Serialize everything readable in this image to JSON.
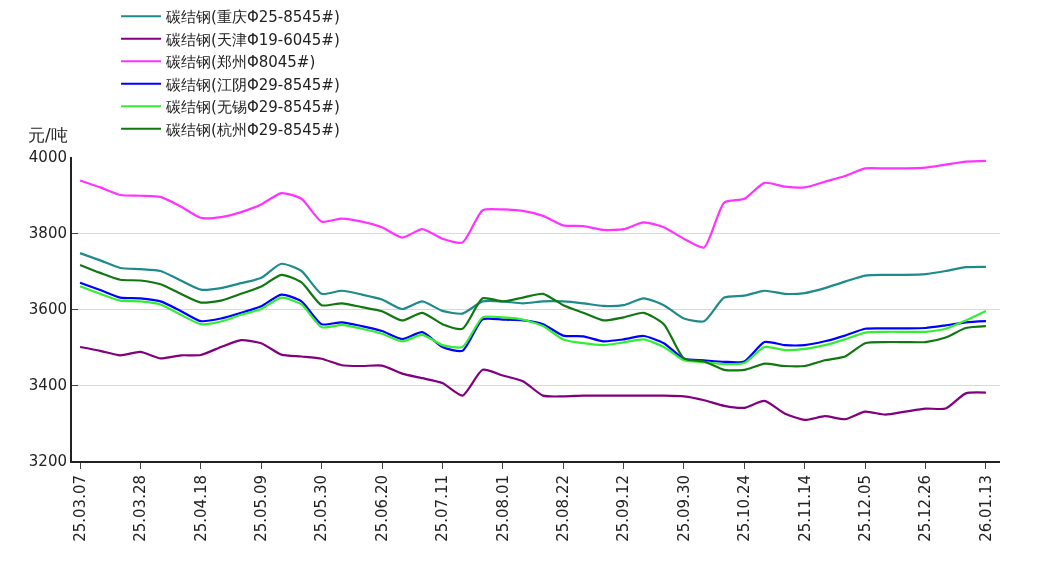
{
  "chart_data": {
    "type": "line",
    "ylabel": "元/吨",
    "categories": [
      "25.03.07",
      null,
      null,
      "25.03.28",
      null,
      null,
      "25.04.18",
      null,
      null,
      "25.05.09",
      null,
      null,
      "25.05.30",
      null,
      null,
      "25.06.20",
      null,
      null,
      "25.07.11",
      null,
      null,
      "25.08.01",
      null,
      null,
      "25.08.22",
      null,
      null,
      "25.09.12",
      null,
      null,
      "25.09.30",
      null,
      null,
      "25.10.24",
      null,
      null,
      "25.11.14",
      null,
      null,
      "25.12.05",
      null,
      null,
      "25.12.26",
      null,
      null,
      "26.01.13"
    ],
    "ylim": [
      3200,
      4000
    ],
    "yticks": [
      3200,
      3400,
      3600,
      3800,
      4000
    ],
    "grid": "y",
    "legend": "top",
    "line_style": "solid",
    "series": [
      {
        "name": "碳结钢(重庆Φ25-8545#)",
        "color": "#1e8a8a",
        "values": [
          3747,
          3728,
          3708,
          3705,
          3700,
          3675,
          3651,
          3655,
          3668,
          3682,
          3719,
          3700,
          3640,
          3648,
          3638,
          3625,
          3600,
          3620,
          3595,
          3588,
          3620,
          3620,
          3615,
          3620,
          3620,
          3615,
          3608,
          3610,
          3628,
          3610,
          3575,
          3568,
          3630,
          3635,
          3648,
          3640,
          3642,
          3655,
          3672,
          3688,
          3690,
          3690,
          3692,
          3700,
          3710,
          3711
        ]
      },
      {
        "name": "碳结钢(天津Φ19-6045#)",
        "color": "#800080",
        "values": [
          3500,
          3490,
          3478,
          3487,
          3470,
          3478,
          3479,
          3500,
          3518,
          3510,
          3480,
          3475,
          3469,
          3452,
          3450,
          3451,
          3430,
          3418,
          3405,
          3372,
          3440,
          3425,
          3410,
          3372,
          3370,
          3372,
          3372,
          3372,
          3372,
          3372,
          3370,
          3360,
          3345,
          3340,
          3358,
          3325,
          3308,
          3318,
          3310,
          3330,
          3322,
          3330,
          3338,
          3338,
          3378,
          3380
        ]
      },
      {
        "name": "碳结钢(郑州Φ8045#)",
        "color": "#ff33ff",
        "values": [
          3938,
          3920,
          3900,
          3898,
          3895,
          3870,
          3840,
          3842,
          3855,
          3875,
          3905,
          3890,
          3830,
          3838,
          3830,
          3815,
          3788,
          3810,
          3785,
          3775,
          3860,
          3862,
          3858,
          3845,
          3820,
          3818,
          3808,
          3810,
          3828,
          3815,
          3785,
          3762,
          3880,
          3890,
          3932,
          3922,
          3920,
          3935,
          3950,
          3970,
          3970,
          3970,
          3972,
          3980,
          3988,
          3990
        ]
      },
      {
        "name": "碳结钢(江阴Φ29-8545#)",
        "color": "#0000ff",
        "values": [
          3669,
          3650,
          3630,
          3628,
          3620,
          3595,
          3568,
          3575,
          3590,
          3607,
          3638,
          3620,
          3560,
          3565,
          3555,
          3542,
          3521,
          3539,
          3500,
          3490,
          3573,
          3572,
          3570,
          3560,
          3530,
          3528,
          3515,
          3520,
          3529,
          3510,
          3469,
          3465,
          3461,
          3462,
          3513,
          3505,
          3505,
          3515,
          3530,
          3548,
          3549,
          3549,
          3550,
          3557,
          3565,
          3568
        ]
      },
      {
        "name": "碳结钢(无锡Φ29-8545#)",
        "color": "#33ee33",
        "values": [
          3660,
          3640,
          3622,
          3620,
          3612,
          3585,
          3560,
          3567,
          3585,
          3600,
          3630,
          3612,
          3552,
          3558,
          3548,
          3535,
          3515,
          3532,
          3505,
          3500,
          3578,
          3578,
          3572,
          3555,
          3520,
          3510,
          3505,
          3512,
          3520,
          3500,
          3465,
          3460,
          3455,
          3458,
          3500,
          3492,
          3495,
          3505,
          3520,
          3538,
          3540,
          3540,
          3540,
          3548,
          3570,
          3595
        ]
      },
      {
        "name": "碳结钢(杭州Φ29-8545#)",
        "color": "#117711",
        "values": [
          3716,
          3695,
          3677,
          3675,
          3665,
          3640,
          3617,
          3622,
          3640,
          3659,
          3690,
          3670,
          3610,
          3615,
          3605,
          3594,
          3570,
          3590,
          3560,
          3548,
          3628,
          3620,
          3630,
          3640,
          3610,
          3590,
          3570,
          3578,
          3590,
          3560,
          3470,
          3462,
          3440,
          3440,
          3456,
          3450,
          3450,
          3465,
          3475,
          3510,
          3513,
          3513,
          3513,
          3525,
          3550,
          3555
        ]
      }
    ]
  }
}
